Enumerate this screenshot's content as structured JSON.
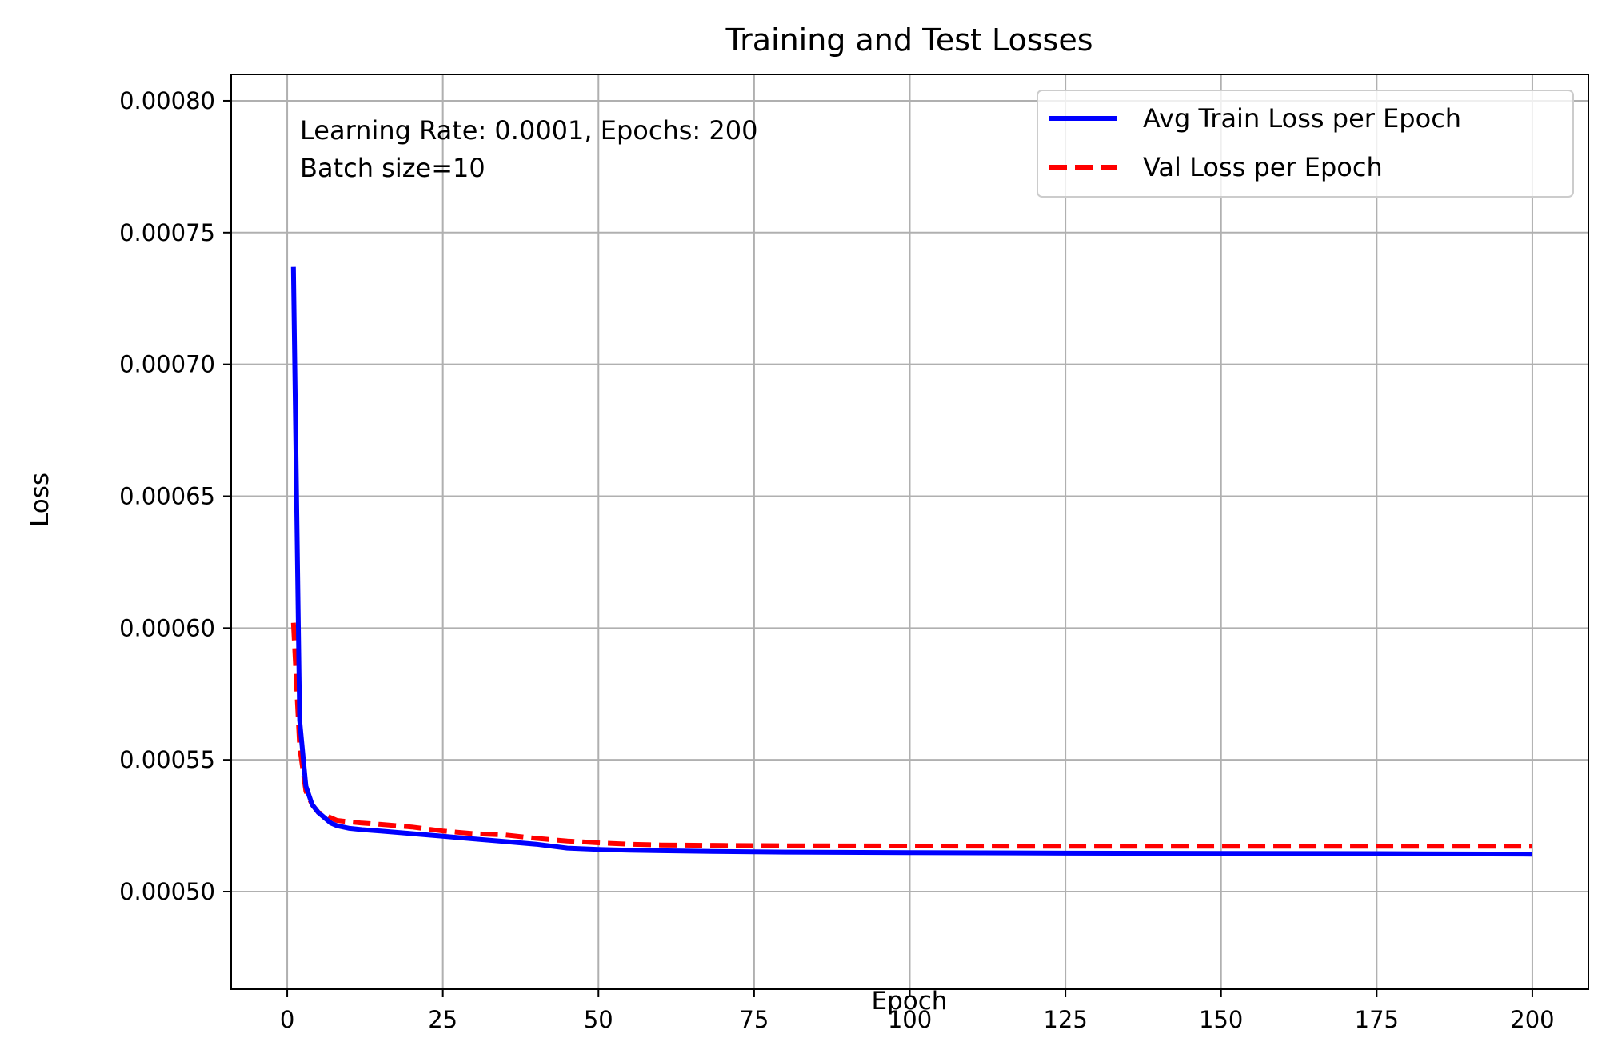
{
  "chart_data": {
    "type": "line",
    "title": "Training and Test Losses",
    "xlabel": "Epoch",
    "ylabel": "Loss",
    "xlim": [
      -9,
      209
    ],
    "ylim": [
      0.000463,
      0.00081
    ],
    "xticks": [
      0,
      25,
      50,
      75,
      100,
      125,
      150,
      175,
      200
    ],
    "xtick_labels": [
      "0",
      "25",
      "50",
      "75",
      "100",
      "125",
      "150",
      "175",
      "200"
    ],
    "yticks": [
      0.0005,
      0.00055,
      0.0006,
      0.00065,
      0.0007,
      0.00075,
      0.0008
    ],
    "ytick_labels": [
      "0.00050",
      "0.00055",
      "0.00060",
      "0.00065",
      "0.00070",
      "0.00075",
      "0.00080"
    ],
    "grid": true,
    "legend_position": "top-right",
    "annotation": [
      "Learning Rate: 0.0001, Epochs: 200",
      "Batch size=10"
    ],
    "series": [
      {
        "name": "Avg Train Loss per Epoch",
        "color": "#0000ff",
        "style": "solid",
        "x": [
          1,
          2,
          3,
          4,
          5,
          6,
          7,
          8,
          10,
          12,
          15,
          20,
          25,
          30,
          35,
          40,
          45,
          50,
          55,
          60,
          70,
          80,
          100,
          125,
          150,
          175,
          200
        ],
        "y": [
          0.000737,
          0.000565,
          0.00054,
          0.000533,
          0.00053,
          0.000528,
          0.000526,
          0.000525,
          0.000524,
          0.0005235,
          0.000523,
          0.000522,
          0.000521,
          0.00052,
          0.000519,
          0.000518,
          0.0005165,
          0.000516,
          0.0005157,
          0.0005155,
          0.0005152,
          0.000515,
          0.0005148,
          0.0005146,
          0.0005145,
          0.0005144,
          0.0005142
        ]
      },
      {
        "name": "Val Loss per Epoch",
        "color": "#ff0000",
        "style": "dashed",
        "x": [
          1,
          2,
          3,
          4,
          5,
          6,
          7,
          8,
          10,
          12,
          15,
          20,
          25,
          30,
          35,
          40,
          45,
          50,
          55,
          60,
          70,
          80,
          100,
          125,
          150,
          175,
          200
        ],
        "y": [
          0.000602,
          0.000555,
          0.000538,
          0.000533,
          0.00053,
          0.000529,
          0.000528,
          0.000527,
          0.0005265,
          0.000526,
          0.0005255,
          0.0005245,
          0.000523,
          0.000522,
          0.0005215,
          0.0005202,
          0.0005192,
          0.0005185,
          0.000518,
          0.0005177,
          0.0005175,
          0.0005174,
          0.0005173,
          0.0005172,
          0.0005172,
          0.0005172,
          0.0005172
        ]
      }
    ]
  }
}
